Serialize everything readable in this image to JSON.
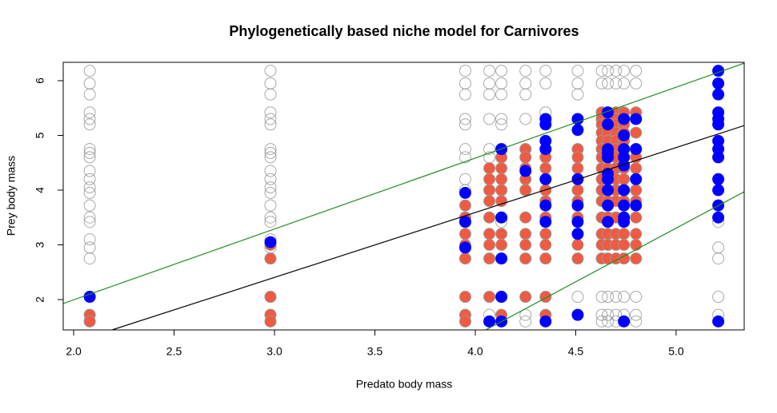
{
  "chart_data": {
    "type": "scatter",
    "title": "Phylogenetically based niche model for Carnivores",
    "xlabel": "Predato body mass",
    "ylabel": "Prey body mass",
    "xlim": [
      1.948,
      5.339
    ],
    "ylim": [
      1.445,
      6.336
    ],
    "xticks": [
      {
        "value": 2,
        "label": "2.0"
      },
      2.5,
      {
        "value": 3,
        "label": "3.0"
      },
      3.5,
      {
        "value": 4,
        "label": "4.0"
      },
      4.5,
      {
        "value": 5,
        "label": "5.0"
      }
    ],
    "yticks": [
      2,
      3,
      4,
      5,
      6
    ],
    "series": [
      {
        "color": "#8c8c8c",
        "filled": false,
        "columns": [
          {
            "x": 2.08,
            "y": [
              6.18,
              5.95,
              5.75,
              5.42,
              5.3,
              5.2,
              4.75,
              4.68,
              4.6,
              4.35,
              4.2,
              4.05,
              3.95,
              3.72,
              3.5,
              3.42,
              3.1,
              2.95,
              2.75,
              2.05,
              1.72,
              1.6
            ]
          },
          {
            "x": 2.98,
            "y": [
              6.18,
              5.95,
              5.75,
              5.42,
              5.3,
              5.2,
              4.75,
              4.68,
              4.6,
              4.35,
              4.2,
              4.05,
              3.95,
              3.72,
              3.5,
              3.42,
              3.1,
              2.95,
              2.75,
              2.05,
              1.72,
              1.6
            ]
          },
          {
            "x": 3.95,
            "y": [
              6.18,
              5.95,
              5.75,
              5.3,
              5.2,
              4.75,
              4.6,
              4.2,
              4.0,
              3.5,
              3.42,
              2.95,
              2.75,
              2.05,
              1.72,
              1.6
            ]
          },
          {
            "x": 4.07,
            "y": [
              6.18,
              5.95,
              5.75,
              5.3,
              4.75,
              4.6,
              4.0,
              3.5,
              2.75,
              2.05,
              1.72,
              1.6
            ]
          },
          {
            "x": 4.13,
            "y": [
              6.18,
              5.95,
              5.75,
              5.3,
              5.2,
              4.75,
              4.6,
              4.0,
              3.5,
              3.42,
              2.75,
              2.05,
              1.72,
              1.6
            ]
          },
          {
            "x": 4.25,
            "y": [
              6.18,
              5.95,
              5.75,
              5.3,
              4.75,
              4.6,
              4.0,
              3.5,
              2.75,
              2.05,
              1.72,
              1.6
            ]
          },
          {
            "x": 4.35,
            "y": [
              6.18,
              5.95,
              5.42,
              5.3,
              4.75,
              4.6,
              4.0,
              3.5,
              2.75,
              2.05,
              1.72
            ]
          },
          {
            "x": 4.51,
            "y": [
              6.18,
              5.95,
              5.75,
              5.3,
              4.75,
              4.0,
              3.5,
              2.75,
              2.05,
              1.72
            ]
          },
          {
            "x": 4.63,
            "y": [
              6.18,
              5.95,
              5.42,
              5.3,
              4.75,
              4.0,
              3.5,
              2.75,
              2.05,
              1.72,
              1.6
            ]
          },
          {
            "x": 4.66,
            "y": [
              6.18,
              5.95,
              5.42,
              5.3,
              4.75,
              4.0,
              3.5,
              2.75,
              2.05,
              1.72,
              1.6
            ]
          },
          {
            "x": 4.7,
            "y": [
              6.18,
              5.95,
              5.42,
              5.3,
              4.75,
              4.0,
              3.5,
              2.75,
              2.05,
              1.72,
              1.6
            ]
          },
          {
            "x": 4.74,
            "y": [
              6.18,
              5.95,
              5.42,
              5.3,
              4.75,
              4.0,
              3.5,
              2.75,
              2.05,
              1.72,
              1.6
            ]
          },
          {
            "x": 4.8,
            "y": [
              6.18,
              5.95,
              5.42,
              5.3,
              4.75,
              4.0,
              3.5,
              2.75,
              2.05,
              1.72,
              1.6
            ]
          },
          {
            "x": 5.21,
            "y": [
              6.18,
              5.95,
              5.75,
              5.42,
              5.3,
              5.2,
              4.75,
              4.6,
              4.2,
              4.0,
              3.5,
              3.42,
              2.95,
              2.75,
              2.05,
              1.72,
              1.6
            ]
          }
        ]
      },
      {
        "color": "#f05a40",
        "filled": true,
        "columns": [
          {
            "x": 2.08,
            "y": [
              1.72,
              1.6
            ]
          },
          {
            "x": 2.98,
            "y": [
              3.0,
              2.75,
              2.05,
              1.72,
              1.6
            ]
          },
          {
            "x": 3.95,
            "y": [
              3.72,
              3.5,
              3.2,
              3.0,
              2.75,
              2.05,
              1.72,
              1.6
            ]
          },
          {
            "x": 4.07,
            "y": [
              4.4,
              4.2,
              4.0,
              3.8,
              3.5,
              3.2,
              3.0,
              2.75,
              2.05
            ]
          },
          {
            "x": 4.13,
            "y": [
              4.6,
              4.4,
              4.2,
              4.0,
              3.8,
              3.5,
              3.2,
              3.0,
              2.05,
              1.72
            ]
          },
          {
            "x": 4.25,
            "y": [
              4.75,
              4.6,
              4.4,
              4.2,
              4.0,
              3.5,
              3.2,
              3.0,
              2.75,
              2.05
            ]
          },
          {
            "x": 4.35,
            "y": [
              4.75,
              4.6,
              4.4,
              4.2,
              4.0,
              3.8,
              3.5,
              3.2,
              3.0,
              2.75,
              2.05,
              1.72
            ]
          },
          {
            "x": 4.51,
            "y": [
              4.75,
              4.6,
              4.4,
              4.2,
              4.0,
              3.8,
              3.5,
              3.2,
              3.0,
              2.75
            ]
          },
          {
            "x": 4.63,
            "y": [
              5.42,
              5.3,
              5.2,
              5.05,
              4.9,
              4.75,
              4.6,
              4.4,
              4.2,
              4.0,
              3.8,
              3.5,
              3.2,
              3.0,
              2.75
            ]
          },
          {
            "x": 4.66,
            "y": [
              5.42,
              5.3,
              5.2,
              5.05,
              4.9,
              4.75,
              4.6,
              4.4,
              4.2,
              4.0,
              3.8,
              3.5,
              3.2,
              3.0,
              2.75
            ]
          },
          {
            "x": 4.7,
            "y": [
              5.42,
              5.3,
              5.2,
              5.05,
              4.9,
              4.75,
              4.6,
              4.4,
              4.2,
              4.0,
              3.8,
              3.5,
              3.2,
              3.0,
              2.75
            ]
          },
          {
            "x": 4.74,
            "y": [
              5.42,
              5.3,
              5.2,
              5.05,
              4.9,
              4.75,
              4.6,
              4.4,
              4.2,
              4.0,
              3.8,
              3.5,
              3.2,
              3.0,
              2.75
            ]
          },
          {
            "x": 4.8,
            "y": [
              5.42,
              5.3,
              5.05,
              4.75,
              4.6,
              4.4,
              4.2,
              4.0,
              3.8,
              3.5,
              3.2,
              3.0,
              2.75
            ]
          }
        ]
      },
      {
        "color": "#0000ff",
        "filled": true,
        "columns": [
          {
            "x": 2.08,
            "y": [
              2.05
            ]
          },
          {
            "x": 2.98,
            "y": [
              3.05
            ]
          },
          {
            "x": 3.95,
            "y": [
              3.95,
              3.42,
              2.95
            ]
          },
          {
            "x": 4.07,
            "y": [
              1.6
            ]
          },
          {
            "x": 4.13,
            "y": [
              4.75,
              3.5,
              2.75,
              2.05,
              1.6
            ]
          },
          {
            "x": 4.25,
            "y": [
              4.35
            ]
          },
          {
            "x": 4.35,
            "y": [
              5.3,
              5.2,
              4.9,
              4.75,
              4.2,
              3.72,
              3.42,
              1.6
            ]
          },
          {
            "x": 4.51,
            "y": [
              5.3,
              5.1,
              4.2,
              3.72,
              3.42,
              3.2,
              1.72
            ]
          },
          {
            "x": 4.66,
            "y": [
              5.42,
              5.2,
              4.75,
              4.68,
              4.6,
              4.3,
              4.2,
              4.0,
              3.72,
              3.42
            ]
          },
          {
            "x": 4.74,
            "y": [
              5.3,
              5.0,
              4.75,
              4.6,
              4.45,
              4.0,
              3.72,
              3.5,
              3.42,
              1.6
            ]
          },
          {
            "x": 4.8,
            "y": [
              5.3,
              4.75,
              4.2,
              3.72
            ]
          },
          {
            "x": 5.21,
            "y": [
              6.18,
              5.95,
              5.75,
              5.42,
              5.3,
              5.2,
              4.9,
              4.75,
              4.6,
              4.2,
              4.0,
              3.72,
              3.5,
              1.6
            ]
          }
        ]
      }
    ],
    "lines": [
      {
        "color": "#000000",
        "x": [
          2.191,
          5.339
        ],
        "y": [
          1.445,
          5.18
        ]
      },
      {
        "color": "#228b22",
        "x": [
          1.948,
          5.339
        ],
        "y": [
          1.927,
          6.32
        ]
      },
      {
        "color": "#228b22",
        "x": [
          4.052,
          5.339
        ],
        "y": [
          1.445,
          3.97
        ]
      }
    ]
  }
}
